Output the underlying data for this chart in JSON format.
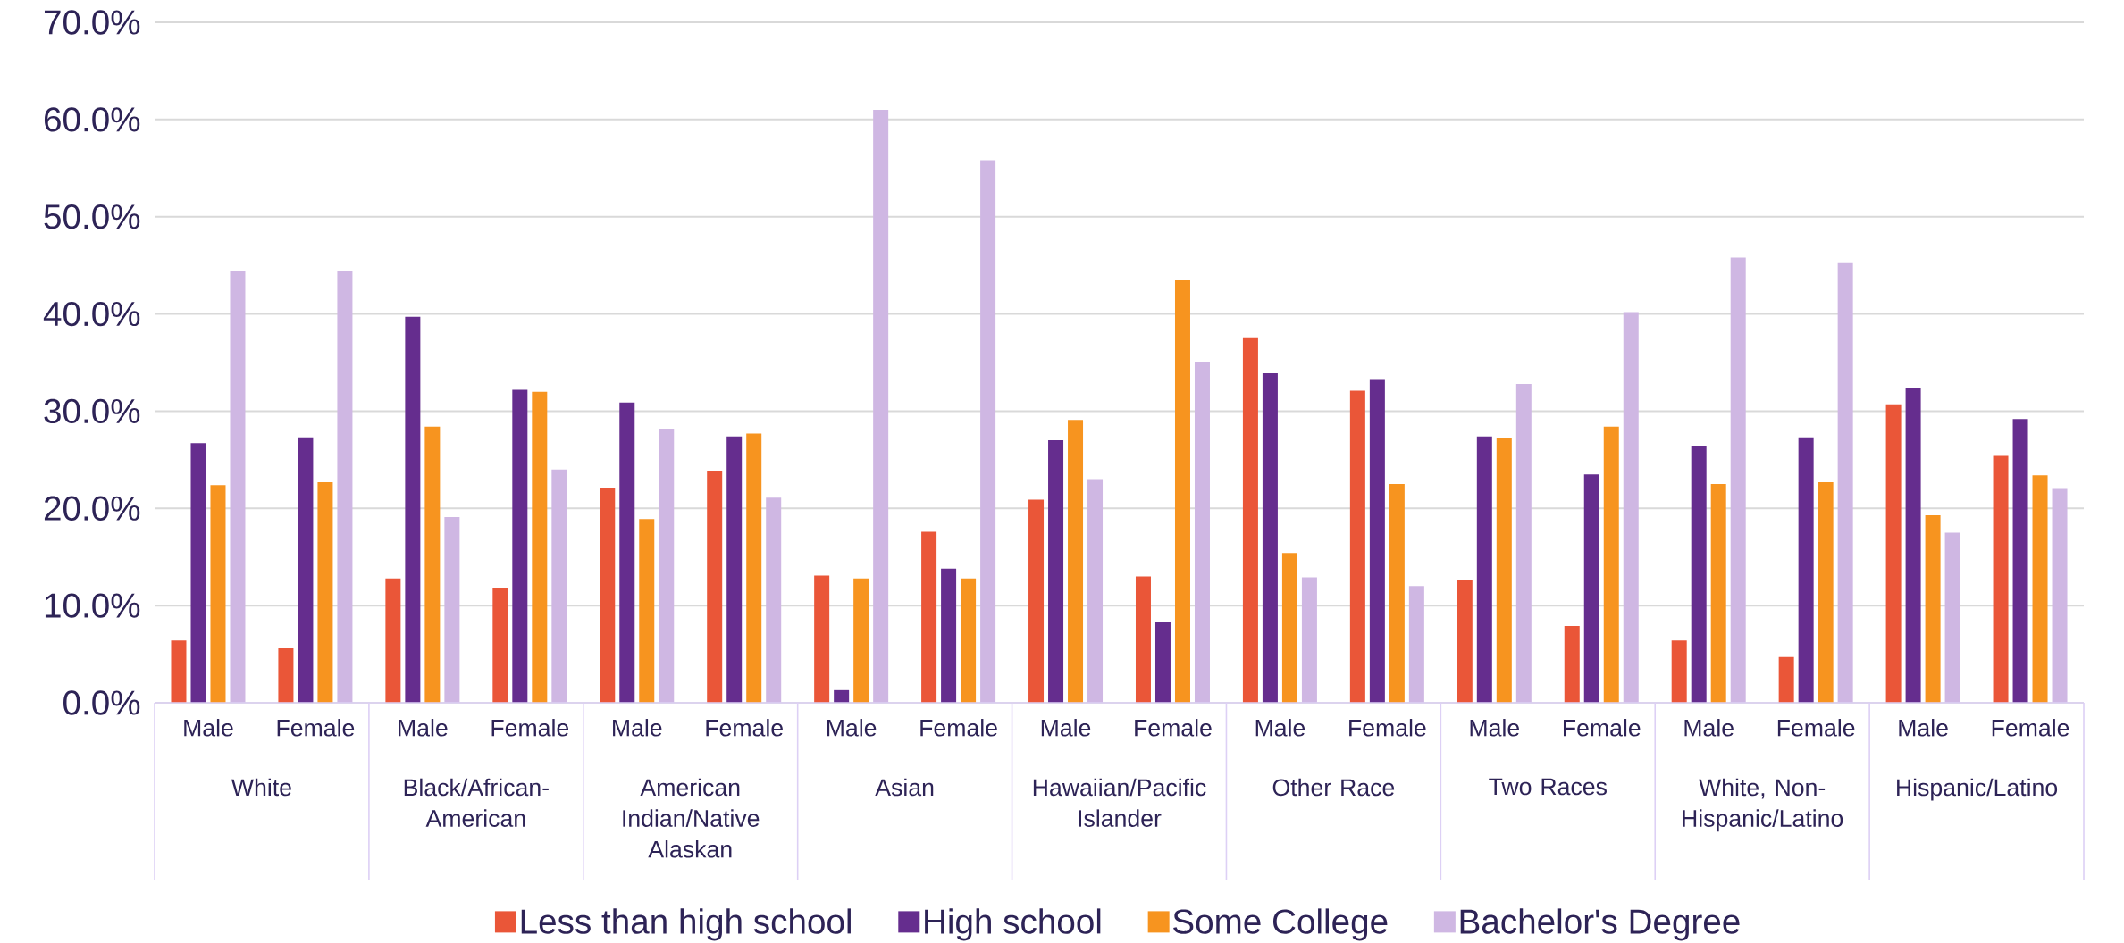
{
  "chart_data": {
    "type": "bar",
    "categories": [
      "Male",
      "Female",
      "Male",
      "Female",
      "Male",
      "Female",
      "Male",
      "Female",
      "Male",
      "Female",
      "Male",
      "Female",
      "Male",
      "Female",
      "Male",
      "Female",
      "Male",
      "Female"
    ],
    "annotations": [
      "White",
      "Black/African-American",
      "American Indian/Native Alaskan",
      "Asian",
      "Hawaiian/Pacific Islander",
      "Other Race",
      "Two Races",
      "White, Non-Hispanic/Latino",
      "Hispanic/Latino"
    ],
    "series": [
      {
        "name": "Less than high school",
        "color": "#ea5638",
        "values": [
          6.4,
          5.6,
          12.8,
          11.8,
          22.1,
          23.8,
          13.1,
          17.6,
          20.9,
          13.0,
          37.6,
          32.1,
          12.6,
          7.9,
          6.4,
          4.7,
          30.7,
          25.4
        ]
      },
      {
        "name": "High school",
        "color": "#652d8e",
        "values": [
          26.7,
          27.3,
          39.7,
          32.2,
          30.9,
          27.4,
          1.3,
          13.8,
          27.0,
          8.3,
          33.9,
          33.3,
          27.4,
          23.5,
          26.4,
          27.3,
          32.4,
          29.2
        ]
      },
      {
        "name": "Some College",
        "color": "#f7941f",
        "values": [
          22.4,
          22.7,
          28.4,
          32.0,
          18.9,
          27.7,
          12.8,
          12.8,
          29.1,
          43.5,
          15.4,
          22.5,
          27.2,
          28.4,
          22.5,
          22.7,
          19.3,
          23.4
        ]
      },
      {
        "name": "Bachelor's Degree",
        "color": "#cfb7e3",
        "values": [
          44.4,
          44.4,
          19.1,
          24.0,
          28.2,
          21.1,
          61.0,
          55.8,
          23.0,
          35.1,
          12.9,
          12.0,
          32.8,
          40.2,
          45.8,
          45.3,
          17.5,
          22.0
        ]
      }
    ],
    "ylim": [
      0,
      70
    ],
    "yticks": [
      {
        "value": 0,
        "label": "0.0%"
      },
      {
        "value": 10,
        "label": "10.0%"
      },
      {
        "value": 20,
        "label": "20.0%"
      },
      {
        "value": 30,
        "label": "30.0%"
      },
      {
        "value": 40,
        "label": "40.0%"
      },
      {
        "value": 50,
        "label": "50.0%"
      },
      {
        "value": 60,
        "label": "60.0%"
      },
      {
        "value": 70,
        "label": "70.0%"
      }
    ],
    "grid": "y",
    "legend": "bottom"
  }
}
